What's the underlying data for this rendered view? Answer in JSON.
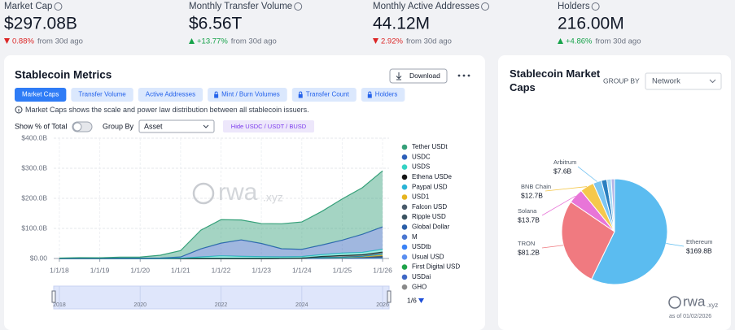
{
  "kpis": [
    {
      "label": "Market Cap",
      "value": "$297.08B",
      "change": "0.88%",
      "direction": "down",
      "note": "from 30d ago"
    },
    {
      "label": "Monthly Transfer Volume",
      "value": "$6.56T",
      "change": "+13.77%",
      "direction": "up",
      "note": "from 30d ago"
    },
    {
      "label": "Monthly Active Addresses",
      "value": "44.12M",
      "change": "2.92%",
      "direction": "down",
      "note": "from 30d ago"
    },
    {
      "label": "Holders",
      "value": "216.00M",
      "change": "+4.86%",
      "direction": "up",
      "note": "from 30d ago"
    }
  ],
  "metrics_panel": {
    "download": "Download",
    "tabs": [
      "Market Caps",
      "Transfer Volume",
      "Active Addresses",
      "Mint / Burn Volumes",
      "Transfer Count",
      "Holders"
    ],
    "info": "Market Caps shows the scale and power law distribution between all stablecoin issuers.",
    "show_pct_label": "Show % of Total",
    "group_by_label": "Group By",
    "group_by_value": "Asset",
    "hide_button": "Hide USDC / USDT / BUSD",
    "legend_page": "1/6",
    "watermark": {
      "main": "rwa",
      "sub": ".xyz"
    }
  },
  "pie_panel": {
    "group_by_label": "GROUP BY",
    "group_by_value": "Network",
    "logo": {
      "main": "rwa",
      "sub": ".xyz"
    },
    "as_of": "as of 01/02/2026"
  },
  "chart_data": [
    {
      "type": "area",
      "title": "Stablecoin Metrics",
      "stacked": true,
      "grid": true,
      "x": [
        2018,
        2018.5,
        2019,
        2019.5,
        2020,
        2020.5,
        2021,
        2021.5,
        2022,
        2022.5,
        2023,
        2023.5,
        2024,
        2024.5,
        2025,
        2025.5,
        2026
      ],
      "xlim": [
        2017.86,
        2026.16
      ],
      "xticks": [
        {
          "value": 2018,
          "label": "1/1/18"
        },
        {
          "value": 2019,
          "label": "1/1/19"
        },
        {
          "value": 2020,
          "label": "1/1/20"
        },
        {
          "value": 2021,
          "label": "1/1/21"
        },
        {
          "value": 2022,
          "label": "1/1/22"
        },
        {
          "value": 2023,
          "label": "1/1/23"
        },
        {
          "value": 2024,
          "label": "1/1/24"
        },
        {
          "value": 2025,
          "label": "1/1/25"
        },
        {
          "value": 2026,
          "label": "1/1/26"
        }
      ],
      "ylim": [
        0,
        400
      ],
      "yticks": [
        {
          "value": 0,
          "label": "$0.00"
        },
        {
          "value": 100,
          "label": "$100.0B"
        },
        {
          "value": 200,
          "label": "$200.0B"
        },
        {
          "value": 300,
          "label": "$300.0B"
        },
        {
          "value": 400,
          "label": "$400.0B"
        }
      ],
      "navigator_ticks": [
        2018,
        2020,
        2022,
        2024,
        2026
      ],
      "series": [
        {
          "name": "Tether USDt",
          "color": "#35a079",
          "values": [
            1.4,
            2.7,
            2.0,
            4.0,
            4.2,
            9.5,
            21,
            62,
            78,
            66,
            66,
            83,
            91,
            112,
            137,
            155,
            186
          ]
        },
        {
          "name": "USDC",
          "color": "#2d5fb9",
          "values": [
            0,
            0.2,
            0.4,
            0.6,
            0.5,
            1.1,
            3.8,
            27,
            42,
            55,
            44,
            27,
            24,
            32,
            43,
            60,
            75
          ]
        },
        {
          "name": "USDS",
          "color": "#35d3c4",
          "values": [
            0,
            0,
            0,
            0,
            0.1,
            0.2,
            1.2,
            5,
            9,
            7,
            6,
            5,
            5,
            6,
            8,
            8,
            9
          ]
        },
        {
          "name": "Ethena USDe",
          "color": "#141414",
          "values": [
            0,
            0,
            0,
            0,
            0,
            0,
            0,
            0,
            0,
            0,
            0,
            0,
            0.1,
            3.5,
            6,
            5.5,
            6.4
          ]
        },
        {
          "name": "Paypal USD",
          "color": "#2ab4d6",
          "values": [
            0,
            0,
            0,
            0,
            0,
            0,
            0,
            0,
            0,
            0,
            0,
            0.1,
            0.3,
            0.5,
            0.5,
            0.9,
            3.8
          ]
        },
        {
          "name": "USD1",
          "color": "#e6b420",
          "values": [
            0,
            0,
            0,
            0,
            0,
            0,
            0,
            0,
            0,
            0,
            0,
            0,
            0,
            0,
            0,
            2.2,
            3.0
          ]
        },
        {
          "name": "Falcon USD",
          "color": "#4a5a6a",
          "values": [
            0,
            0,
            0,
            0,
            0,
            0,
            0,
            0,
            0,
            0,
            0,
            0,
            0,
            0,
            0,
            0.6,
            2.1
          ]
        },
        {
          "name": "Ripple USD",
          "color": "#3b5360",
          "values": [
            0,
            0,
            0,
            0,
            0,
            0,
            0,
            0,
            0,
            0,
            0,
            0,
            0,
            0,
            0.1,
            0.1,
            1.3
          ]
        },
        {
          "name": "Global Dollar",
          "color": "#2a5ea8",
          "values": [
            0,
            0,
            0,
            0,
            0,
            0,
            0,
            0,
            0,
            0,
            0,
            0,
            0,
            0,
            0.2,
            0.4,
            1.0
          ]
        },
        {
          "name": "M",
          "color": "#4b77d1",
          "values": [
            0,
            0,
            0,
            0,
            0,
            0,
            0,
            0,
            0,
            0,
            0,
            0,
            0,
            0,
            0,
            0.1,
            0.8
          ]
        },
        {
          "name": "USDtb",
          "color": "#3b82f6",
          "values": [
            0,
            0,
            0,
            0,
            0,
            0,
            0,
            0,
            0,
            0,
            0,
            0,
            0,
            0,
            0.1,
            1.0,
            0.8
          ]
        },
        {
          "name": "Usual USD",
          "color": "#5b8ff0",
          "values": [
            0,
            0,
            0,
            0,
            0,
            0,
            0,
            0,
            0,
            0,
            0,
            0,
            0,
            0,
            0.9,
            0.5,
            0.6
          ]
        },
        {
          "name": "First Digital USD",
          "color": "#1fa34a",
          "values": [
            0,
            0,
            0,
            0,
            0,
            0,
            0,
            0,
            0,
            0,
            0,
            0.3,
            1.0,
            2.8,
            2.0,
            1.0,
            0.6
          ]
        },
        {
          "name": "USDai",
          "color": "#3f67c5",
          "values": [
            0,
            0,
            0,
            0,
            0,
            0,
            0,
            0,
            0,
            0,
            0,
            0,
            0,
            0,
            0,
            0,
            0.6
          ]
        },
        {
          "name": "GHO",
          "color": "#8a8a8a",
          "values": [
            0,
            0,
            0,
            0,
            0,
            0,
            0,
            0,
            0,
            0,
            0,
            0,
            0.03,
            0.1,
            0.2,
            0.2,
            0.4
          ]
        }
      ]
    },
    {
      "type": "pie",
      "title": "Stablecoin Market Caps",
      "categories": [
        "Ethereum",
        "TRON",
        "Solana",
        "BNB Chain",
        "Arbitrum",
        null,
        null,
        null
      ],
      "values": [
        169.8,
        81.2,
        13.7,
        12.7,
        7.6,
        5,
        4,
        3
      ],
      "value_labels": [
        "$169.8B",
        "$81.2B",
        "$13.7B",
        "$12.7B",
        "$7.6B",
        null,
        null,
        null
      ],
      "colors": [
        "#5bbcf0",
        "#f07a80",
        "#e875d8",
        "#f5c84c",
        "#7cc6f2",
        "#2a7fc0",
        "#a5d8f5",
        "#b3b3e6"
      ]
    }
  ]
}
